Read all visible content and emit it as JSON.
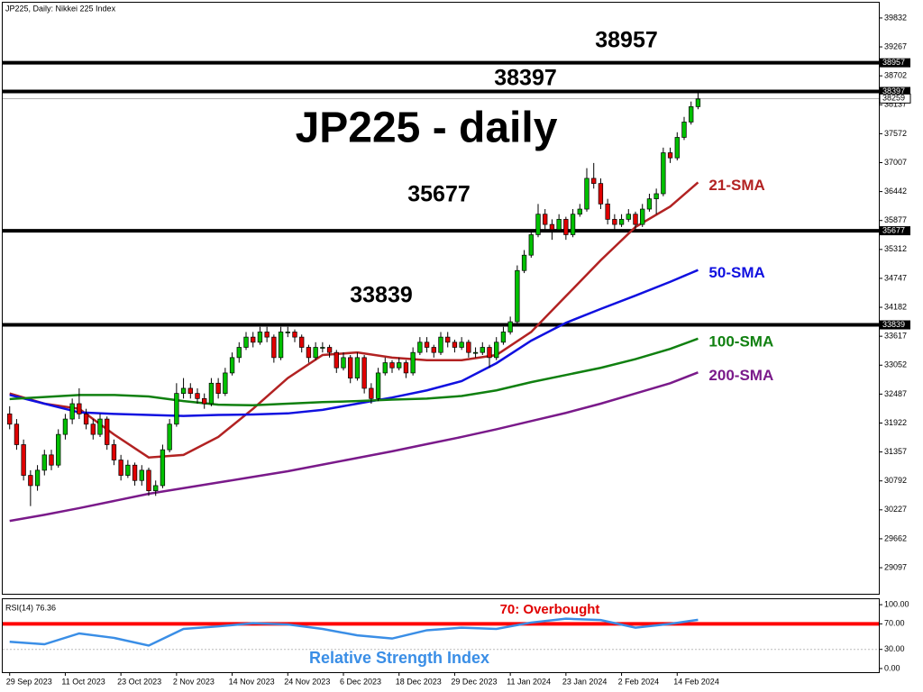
{
  "chart_data": {
    "type": "candlestick",
    "header": "JP225, Daily:  Nikkei 225 Index",
    "title": "JP225 - daily",
    "ylim": [
      28570,
      40130
    ],
    "yticks": [
      29097,
      29662,
      30227,
      30792,
      31357,
      31922,
      32487,
      33052,
      33617,
      34182,
      34747,
      35312,
      35877,
      36442,
      37007,
      37572,
      38137,
      38702,
      39267,
      39832
    ],
    "xlim": [
      -1,
      125
    ],
    "xticks": [
      {
        "value": 0,
        "label": "29 Sep 2023"
      },
      {
        "value": 8,
        "label": "11 Oct 2023"
      },
      {
        "value": 16,
        "label": "23 Oct 2023"
      },
      {
        "value": 24,
        "label": "2 Nov 2023"
      },
      {
        "value": 32,
        "label": "14 Nov 2023"
      },
      {
        "value": 40,
        "label": "24 Nov 2023"
      },
      {
        "value": 48,
        "label": "6 Dec 2023"
      },
      {
        "value": 56,
        "label": "18 Dec 2023"
      },
      {
        "value": 64,
        "label": "29 Dec 2023"
      },
      {
        "value": 72,
        "label": "11 Jan 2024"
      },
      {
        "value": 80,
        "label": "23 Jan 2024"
      },
      {
        "value": 88,
        "label": "2 Feb 2024"
      },
      {
        "value": 96,
        "label": "14 Feb 2024"
      }
    ],
    "bull_color": "#00c000",
    "bear_color": "#e00000",
    "last_price": 38259,
    "levels": [
      38957,
      38397,
      35677,
      33839
    ],
    "candles": [
      [
        32100,
        32250,
        31800,
        31900
      ],
      [
        31900,
        32000,
        31400,
        31500
      ],
      [
        31500,
        31600,
        30800,
        30900
      ],
      [
        30900,
        31000,
        30300,
        30700
      ],
      [
        30700,
        31100,
        30600,
        31000
      ],
      [
        31000,
        31400,
        30900,
        31300
      ],
      [
        31300,
        31400,
        31000,
        31100
      ],
      [
        31100,
        31800,
        31050,
        31700
      ],
      [
        31700,
        32100,
        31600,
        32000
      ],
      [
        32000,
        32400,
        31900,
        32300
      ],
      [
        32300,
        32600,
        32000,
        32100
      ],
      [
        32100,
        32200,
        31800,
        31900
      ],
      [
        31900,
        32000,
        31600,
        31700
      ],
      [
        31700,
        32100,
        31650,
        32000
      ],
      [
        32000,
        32050,
        31400,
        31500
      ],
      [
        31500,
        31600,
        31100,
        31200
      ],
      [
        31200,
        31300,
        30800,
        30900
      ],
      [
        30900,
        31200,
        30850,
        31100
      ],
      [
        31100,
        31150,
        30700,
        30800
      ],
      [
        30800,
        31100,
        30700,
        31000
      ],
      [
        31000,
        31050,
        30500,
        30600
      ],
      [
        30600,
        30800,
        30500,
        30700
      ],
      [
        30700,
        31500,
        30650,
        31400
      ],
      [
        31400,
        32000,
        31350,
        31900
      ],
      [
        31900,
        32700,
        31850,
        32500
      ],
      [
        32500,
        32800,
        32400,
        32600
      ],
      [
        32600,
        32700,
        32400,
        32500
      ],
      [
        32500,
        32600,
        32300,
        32400
      ],
      [
        32400,
        32500,
        32200,
        32300
      ],
      [
        32300,
        32800,
        32250,
        32700
      ],
      [
        32700,
        32800,
        32400,
        32500
      ],
      [
        32500,
        33000,
        32450,
        32900
      ],
      [
        32900,
        33300,
        32850,
        33200
      ],
      [
        33200,
        33500,
        33100,
        33400
      ],
      [
        33400,
        33700,
        33350,
        33600
      ],
      [
        33600,
        33700,
        33400,
        33500
      ],
      [
        33500,
        33800,
        33450,
        33700
      ],
      [
        33700,
        33800,
        33500,
        33600
      ],
      [
        33600,
        33650,
        33100,
        33200
      ],
      [
        33200,
        33800,
        33150,
        33700
      ],
      [
        33700,
        33800,
        33600,
        33700
      ],
      [
        33700,
        33750,
        33500,
        33600
      ],
      [
        33600,
        33650,
        33300,
        33400
      ],
      [
        33400,
        33450,
        33100,
        33200
      ],
      [
        33200,
        33500,
        33150,
        33400
      ],
      [
        33400,
        33500,
        33300,
        33400
      ],
      [
        33400,
        33450,
        33200,
        33300
      ],
      [
        33300,
        33350,
        32900,
        33000
      ],
      [
        33000,
        33300,
        32950,
        33200
      ],
      [
        33200,
        33250,
        32700,
        32800
      ],
      [
        32800,
        33300,
        32750,
        33200
      ],
      [
        33200,
        33250,
        32500,
        32600
      ],
      [
        32600,
        32700,
        32300,
        32400
      ],
      [
        32400,
        33000,
        32350,
        32900
      ],
      [
        32900,
        33200,
        32850,
        33100
      ],
      [
        33100,
        33150,
        32900,
        33000
      ],
      [
        33000,
        33200,
        32950,
        33100
      ],
      [
        33100,
        33150,
        32800,
        32900
      ],
      [
        32900,
        33400,
        32850,
        33300
      ],
      [
        33300,
        33600,
        33250,
        33500
      ],
      [
        33500,
        33600,
        33300,
        33400
      ],
      [
        33400,
        33450,
        33200,
        33300
      ],
      [
        33300,
        33700,
        33250,
        33600
      ],
      [
        33600,
        33700,
        33400,
        33500
      ],
      [
        33500,
        33550,
        33300,
        33400
      ],
      [
        33400,
        33600,
        33350,
        33500
      ],
      [
        33500,
        33550,
        33200,
        33300
      ],
      [
        33300,
        33400,
        33200,
        33300
      ],
      [
        33300,
        33500,
        33250,
        33400
      ],
      [
        33400,
        33450,
        33000,
        33200
      ],
      [
        33200,
        33600,
        33150,
        33500
      ],
      [
        33500,
        33800,
        33450,
        33700
      ],
      [
        33700,
        34000,
        33650,
        33900
      ],
      [
        33900,
        35000,
        33850,
        34900
      ],
      [
        34900,
        35300,
        34850,
        35200
      ],
      [
        35200,
        35700,
        35150,
        35600
      ],
      [
        35600,
        36200,
        35550,
        36000
      ],
      [
        36000,
        36100,
        35700,
        35800
      ],
      [
        35800,
        35900,
        35500,
        35700
      ],
      [
        35700,
        36000,
        35650,
        35900
      ],
      [
        35900,
        35950,
        35500,
        35600
      ],
      [
        35600,
        36100,
        35550,
        36000
      ],
      [
        36000,
        36200,
        35950,
        36100
      ],
      [
        36100,
        36900,
        36050,
        36700
      ],
      [
        36700,
        37000,
        36500,
        36600
      ],
      [
        36600,
        36700,
        36100,
        36200
      ],
      [
        36200,
        36300,
        35800,
        35900
      ],
      [
        35900,
        36000,
        35700,
        35800
      ],
      [
        35800,
        36000,
        35750,
        35900
      ],
      [
        35900,
        36100,
        35850,
        36000
      ],
      [
        36000,
        36050,
        35700,
        35800
      ],
      [
        35800,
        36200,
        35750,
        36100
      ],
      [
        36100,
        36400,
        36050,
        36300
      ],
      [
        36300,
        36500,
        36000,
        36400
      ],
      [
        36400,
        37300,
        36350,
        37200
      ],
      [
        37200,
        37300,
        37000,
        37100
      ],
      [
        37100,
        37600,
        37050,
        37500
      ],
      [
        37500,
        37900,
        37450,
        37800
      ],
      [
        37800,
        38200,
        37750,
        38100
      ],
      [
        38100,
        38400,
        38050,
        38250
      ]
    ],
    "sma_x": [
      0,
      5,
      10,
      15,
      20,
      25,
      30,
      35,
      40,
      45,
      50,
      55,
      60,
      65,
      70,
      75,
      80,
      85,
      90,
      95,
      99
    ],
    "series": [
      {
        "name": "21-SMA",
        "color": "#b22222",
        "values": [
          32500,
          32300,
          32200,
          31700,
          31250,
          31300,
          31650,
          32200,
          32800,
          33250,
          33300,
          33200,
          33150,
          33150,
          33250,
          33700,
          34400,
          35100,
          35750,
          36150,
          36620
        ]
      },
      {
        "name": "50-SMA",
        "color": "#1010e0",
        "values": [
          32470,
          32300,
          32130,
          32100,
          32080,
          32060,
          32080,
          32090,
          32110,
          32180,
          32300,
          32420,
          32560,
          32740,
          33090,
          33530,
          33880,
          34150,
          34410,
          34680,
          34910
        ]
      },
      {
        "name": "100-SMA",
        "color": "#108010",
        "values": [
          32390,
          32430,
          32470,
          32470,
          32440,
          32350,
          32280,
          32270,
          32300,
          32330,
          32350,
          32380,
          32400,
          32450,
          32560,
          32720,
          32860,
          33000,
          33170,
          33370,
          33570
        ]
      },
      {
        "name": "200-SMA",
        "color": "#7a1a8a",
        "values": [
          30010,
          30130,
          30260,
          30400,
          30540,
          30650,
          30760,
          30870,
          30980,
          31110,
          31240,
          31370,
          31510,
          31650,
          31800,
          31960,
          32120,
          32300,
          32500,
          32700,
          32910
        ]
      }
    ],
    "rsi": {
      "label": "RSI(14) 76.36",
      "title": "Relative Strength Index",
      "overbought": 70,
      "overbought_label": "70: Overbought",
      "color": "#3a8ee6",
      "ylim": [
        -5.7,
        108.6
      ],
      "yticks": [
        {
          "value": 0,
          "label": "0.00"
        },
        {
          "value": 30,
          "label": "30.00"
        },
        {
          "value": 70,
          "label": "70.00"
        },
        {
          "value": 100,
          "label": "100.00"
        }
      ],
      "values": [
        42,
        38,
        55,
        48,
        36,
        62,
        66,
        71,
        69,
        62,
        52,
        47,
        60,
        64,
        62,
        72,
        78,
        76,
        64,
        70,
        76.36
      ]
    }
  }
}
